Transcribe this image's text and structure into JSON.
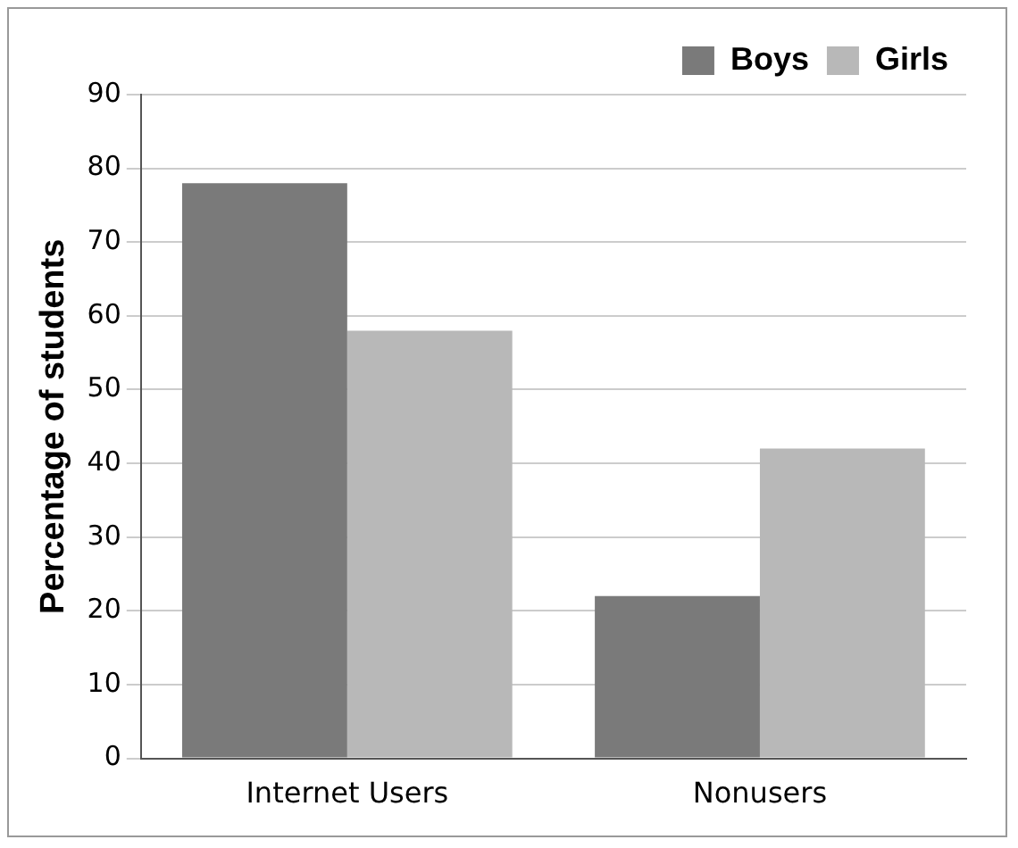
{
  "chart_data": {
    "type": "bar",
    "ylabel": "Percentage of students",
    "categories": [
      "Internet Users",
      "Nonusers"
    ],
    "series": [
      {
        "name": "Boys",
        "color": "#7a7a7a",
        "values": [
          78,
          22
        ]
      },
      {
        "name": "Girls",
        "color": "#b8b8b8",
        "values": [
          58,
          42
        ]
      }
    ],
    "ylim": [
      0,
      90
    ],
    "yticks": [
      0,
      10,
      20,
      30,
      40,
      50,
      60,
      70,
      80,
      90
    ],
    "grid": "y",
    "legend": "top right"
  }
}
